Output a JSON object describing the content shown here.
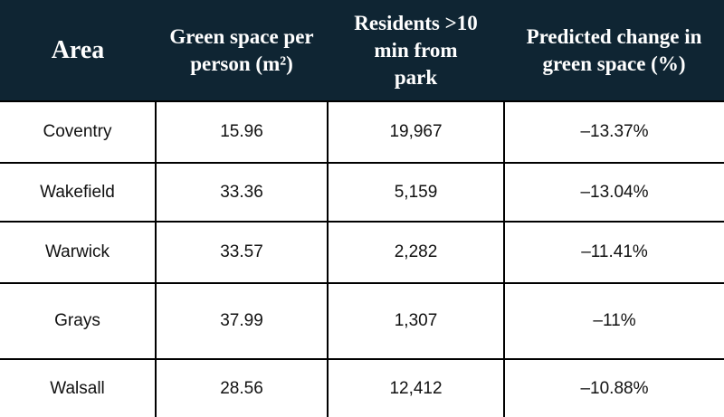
{
  "table": {
    "header": [
      "Area",
      "Green space per person (m²)",
      "Residents >10 min from park",
      "Predicted change in green space (%)"
    ],
    "rows": [
      [
        "Coventry",
        "15.96",
        "19,967",
        "–13.37%"
      ],
      [
        "Wakefield",
        "33.36",
        "5,159",
        "–13.04%"
      ],
      [
        "Warwick",
        "33.57",
        "2,282",
        "–11.41%"
      ],
      [
        "Grays",
        "37.99",
        "1,307",
        "–11%"
      ],
      [
        "Walsall",
        "28.56",
        "12,412",
        "–10.88%"
      ]
    ]
  }
}
